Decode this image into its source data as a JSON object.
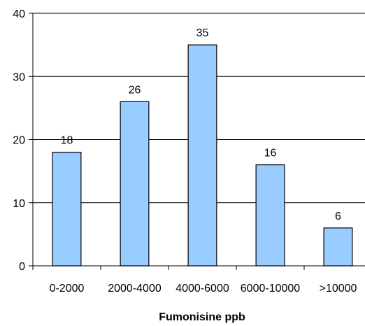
{
  "chart_data": {
    "type": "bar",
    "categories": [
      "0-2000",
      "2000-4000",
      "4000-6000",
      "6000-10000",
      ">10000"
    ],
    "values": [
      18,
      26,
      35,
      16,
      6
    ],
    "data_labels": [
      "18",
      "26",
      "35",
      "16",
      "6"
    ],
    "title": "",
    "xlabel": "Fumonisine ppb",
    "ylabel": "",
    "ylim": [
      0,
      40
    ],
    "yticks": [
      0,
      10,
      20,
      30,
      40
    ],
    "ytick_labels": [
      "0",
      "10",
      "20",
      "30",
      "40"
    ],
    "grid": true,
    "bar_color": "#99ccff",
    "bar_edge_color": "#000000"
  }
}
